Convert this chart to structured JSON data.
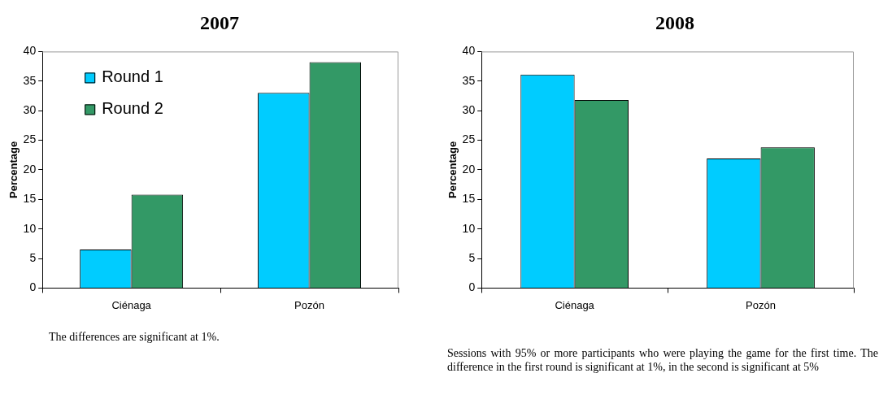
{
  "chart_data": [
    {
      "type": "bar",
      "title": "2007",
      "ylabel": "Percentage",
      "categories": [
        "Ciénaga",
        "Pozón"
      ],
      "series": [
        {
          "name": "Round 1",
          "color": "#00ccff",
          "values": [
            6.5,
            33.0
          ]
        },
        {
          "name": "Round 2",
          "color": "#339966",
          "values": [
            15.8,
            38.2
          ]
        }
      ],
      "ylim": [
        0,
        40
      ],
      "yticks": [
        0,
        5,
        10,
        15,
        20,
        25,
        30,
        35,
        40
      ],
      "grid": false,
      "legend": "top left",
      "annotations": [
        "The differences are significant at 1%."
      ]
    },
    {
      "type": "bar",
      "title": "2008",
      "ylabel": "Percentage",
      "categories": [
        "Ciénaga",
        "Pozón"
      ],
      "series": [
        {
          "color": "#00ccff",
          "values": [
            36.1,
            21.9
          ]
        },
        {
          "color": "#339966",
          "values": [
            31.8,
            23.8
          ]
        }
      ],
      "ylim": [
        0,
        40
      ],
      "yticks": [
        0,
        5,
        10,
        15,
        20,
        25,
        30,
        35,
        40
      ],
      "grid": false,
      "legend": false,
      "annotations": [
        "Sessions with 95% or more participants who were playing the game for the first time. The difference in the first round is significant at 1%, in the second is significant at 5%"
      ]
    }
  ]
}
